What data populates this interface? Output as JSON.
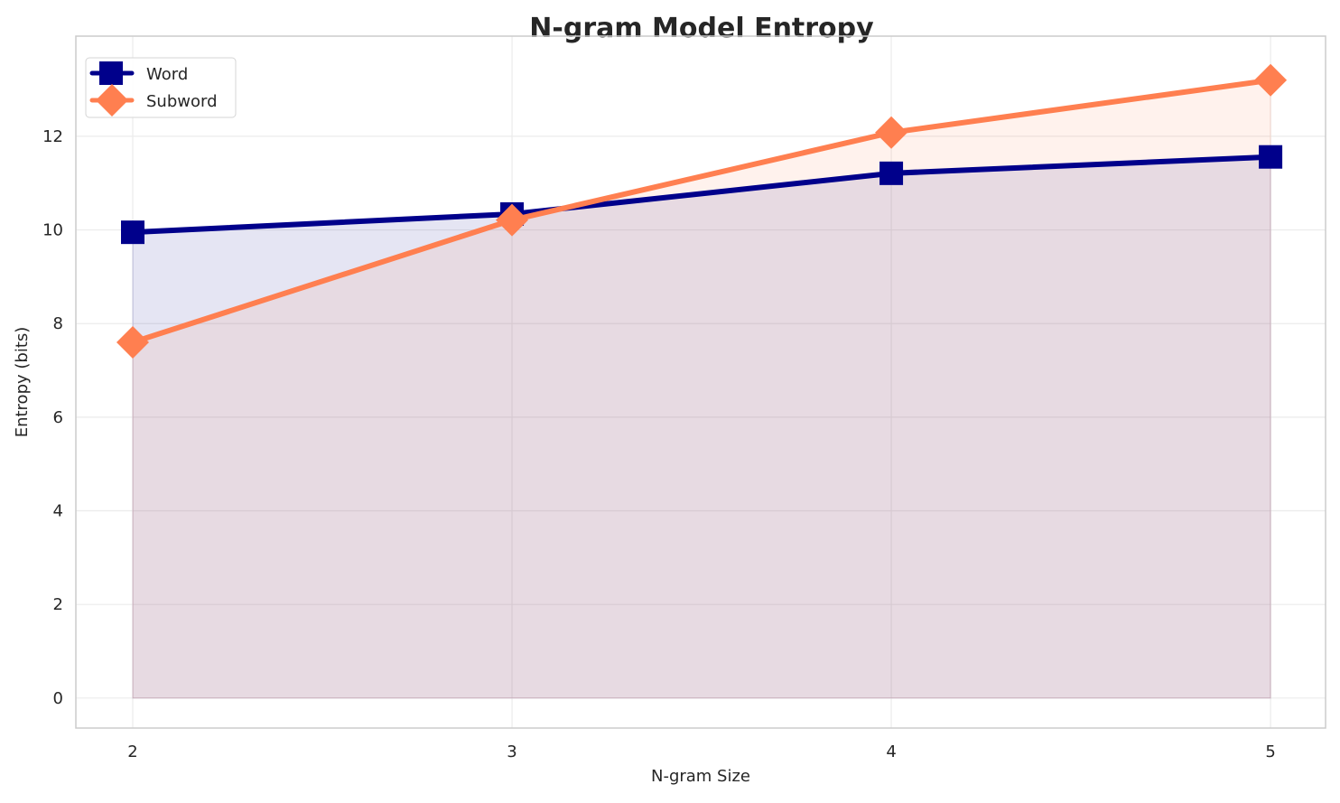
{
  "chart_data": {
    "type": "line",
    "title": "N-gram Model Entropy",
    "xlabel": "N-gram Size",
    "ylabel": "Entropy (bits)",
    "x": [
      2,
      3,
      4,
      5
    ],
    "x_ticks": [
      "2",
      "3",
      "4",
      "5"
    ],
    "y_ticks": [
      "0",
      "2",
      "4",
      "6",
      "8",
      "10",
      "12"
    ],
    "xlim": [
      1.85,
      5.145
    ],
    "ylim": [
      -0.64,
      14.14
    ],
    "grid": true,
    "legend_position": "top-left",
    "fill_to_zero": true,
    "series": [
      {
        "name": "Word",
        "values": [
          9.95,
          10.34,
          11.21,
          11.56
        ],
        "color": "#00008B",
        "marker": "square"
      },
      {
        "name": "Subword",
        "values": [
          7.6,
          10.21,
          12.08,
          13.2
        ],
        "color": "#FF7F50",
        "marker": "diamond"
      }
    ]
  }
}
